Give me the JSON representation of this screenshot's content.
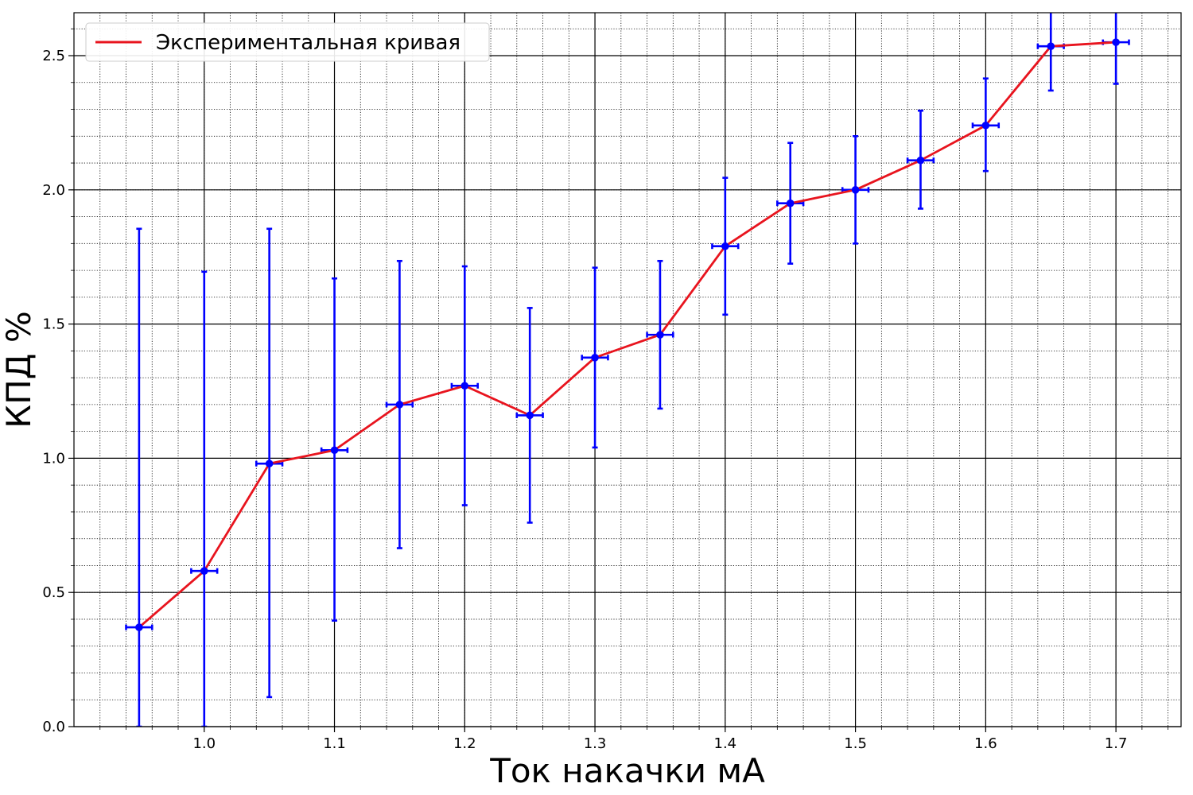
{
  "chart_data": {
    "type": "line",
    "title": "",
    "xlabel": "Ток накачки мА",
    "ylabel": "КПД %",
    "xlim": [
      0.9,
      1.75
    ],
    "ylim": [
      0.0,
      2.66
    ],
    "x_ticks": [
      "1.0",
      "1.1",
      "1.2",
      "1.3",
      "1.4",
      "1.5",
      "1.6",
      "1.7"
    ],
    "y_ticks": [
      "0.0",
      "0.5",
      "1.0",
      "1.5",
      "2.0",
      "2.5"
    ],
    "grid": true,
    "legend_position": "top-left",
    "series": [
      {
        "name": "Экспериментальная кривая",
        "color": "#e8141e",
        "marker_color": "#0000ff",
        "x": [
          0.95,
          1.0,
          1.05,
          1.1,
          1.15,
          1.2,
          1.25,
          1.3,
          1.35,
          1.4,
          1.45,
          1.5,
          1.55,
          1.6,
          1.65,
          1.7
        ],
        "y": [
          0.37,
          0.58,
          0.98,
          1.03,
          1.2,
          1.27,
          1.16,
          1.375,
          1.46,
          1.79,
          1.95,
          2.0,
          2.11,
          2.24,
          2.535,
          2.55
        ],
        "x_err": [
          0.01,
          0.01,
          0.01,
          0.01,
          0.01,
          0.01,
          0.01,
          0.01,
          0.01,
          0.01,
          0.01,
          0.01,
          0.01,
          0.01,
          0.01,
          0.01
        ],
        "y_err_low": [
          0.37,
          0.58,
          0.87,
          0.635,
          0.535,
          0.445,
          0.4,
          0.335,
          0.275,
          0.255,
          0.225,
          0.2,
          0.18,
          0.17,
          0.165,
          0.155
        ],
        "y_err_high": [
          1.485,
          1.115,
          0.875,
          0.64,
          0.535,
          0.445,
          0.4,
          0.335,
          0.275,
          0.255,
          0.225,
          0.2,
          0.185,
          0.175,
          0.165,
          0.155
        ]
      }
    ]
  }
}
